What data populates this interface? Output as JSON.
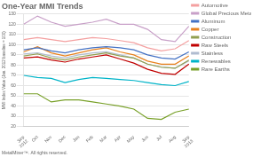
{
  "chart_data": {
    "type": "line",
    "title": "One-Year MMI Trends",
    "y_label": "MMI Index Value (Jan. 2012 baseline = 100)",
    "annotations": [
      "MetalMiner™. All rights reserved."
    ],
    "categories": [
      "Sep\n2012",
      "Oct",
      "Nov",
      "Dec",
      "Jan",
      "Feb",
      "Mar",
      "Apr",
      "May",
      "Jun",
      "Jul",
      "Aug",
      "Sep\n2013"
    ],
    "series": [
      {
        "name": "Automotive",
        "color": "#f4a0a0",
        "values": [
          105,
          107,
          105,
          103,
          105,
          107,
          106,
          104,
          102,
          97,
          94,
          96,
          104
        ]
      },
      {
        "name": "Global Precious Metals",
        "color": "#c8a0c8",
        "values": [
          120,
          128,
          122,
          118,
          120,
          122,
          125,
          120,
          120,
          115,
          105,
          103,
          118
        ]
      },
      {
        "name": "Aluminum",
        "color": "#4472c4",
        "values": [
          95,
          97,
          94,
          92,
          95,
          97,
          98,
          97,
          95,
          90,
          87,
          86,
          93
        ]
      },
      {
        "name": "Copper",
        "color": "#e8821e",
        "values": [
          93,
          98,
          92,
          89,
          92,
          95,
          97,
          93,
          90,
          84,
          81,
          81,
          89
        ]
      },
      {
        "name": "Construction",
        "color": "#92a050",
        "values": [
          89,
          91,
          87,
          85,
          88,
          90,
          92,
          89,
          87,
          81,
          78,
          77,
          85
        ]
      },
      {
        "name": "Raw Steels",
        "color": "#c00000",
        "values": [
          87,
          88,
          85,
          83,
          86,
          88,
          90,
          86,
          82,
          76,
          72,
          71,
          81
        ]
      },
      {
        "name": "Stainless",
        "color": "#b0bcd0",
        "values": [
          91,
          92,
          89,
          87,
          90,
          92,
          93,
          90,
          87,
          81,
          78,
          77,
          84
        ]
      },
      {
        "name": "Renewables",
        "color": "#00b4c8",
        "values": [
          70,
          68,
          67,
          63,
          66,
          68,
          67,
          66,
          65,
          63,
          61,
          60,
          64
        ]
      },
      {
        "name": "Rare Earths",
        "color": "#78a028",
        "values": [
          52,
          52,
          44,
          46,
          46,
          44,
          42,
          40,
          37,
          28,
          27,
          34,
          37
        ]
      }
    ],
    "ylim": [
      20,
      130
    ],
    "yticks": [
      20,
      30,
      40,
      50,
      60,
      70,
      80,
      90,
      100,
      110,
      120,
      130
    ],
    "grid": true,
    "legend": "right"
  }
}
